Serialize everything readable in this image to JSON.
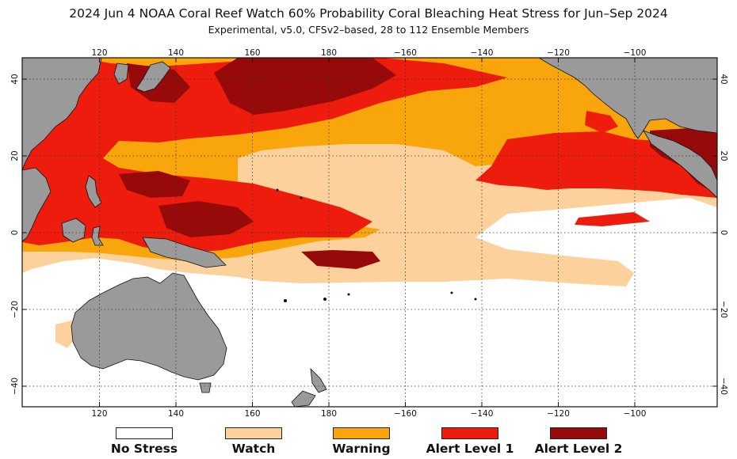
{
  "title": "2024 Jun 4 NOAA Coral Reef Watch 60% Probability Coral Bleaching Heat Stress for Jun–Sep 2024",
  "subtitle": "Experimental, v5.0, CFSv2–based, 28 to 112 Ensemble Members",
  "axes": {
    "lon_ticks": [
      "120",
      "140",
      "160",
      "180",
      "−160",
      "−140",
      "−120",
      "−100"
    ],
    "lat_ticks": [
      "40",
      "20",
      "0",
      "−20",
      "−40"
    ]
  },
  "legend": [
    {
      "label": "No Stress",
      "color": "#ffffff"
    },
    {
      "label": "Watch",
      "color": "#fcd19c"
    },
    {
      "label": "Warning",
      "color": "#f8a60b"
    },
    {
      "label": "Alert Level 1",
      "color": "#ee1c0c"
    },
    {
      "label": "Alert Level 2",
      "color": "#960a0a"
    }
  ],
  "colors": {
    "land": "#9a9a9a"
  }
}
